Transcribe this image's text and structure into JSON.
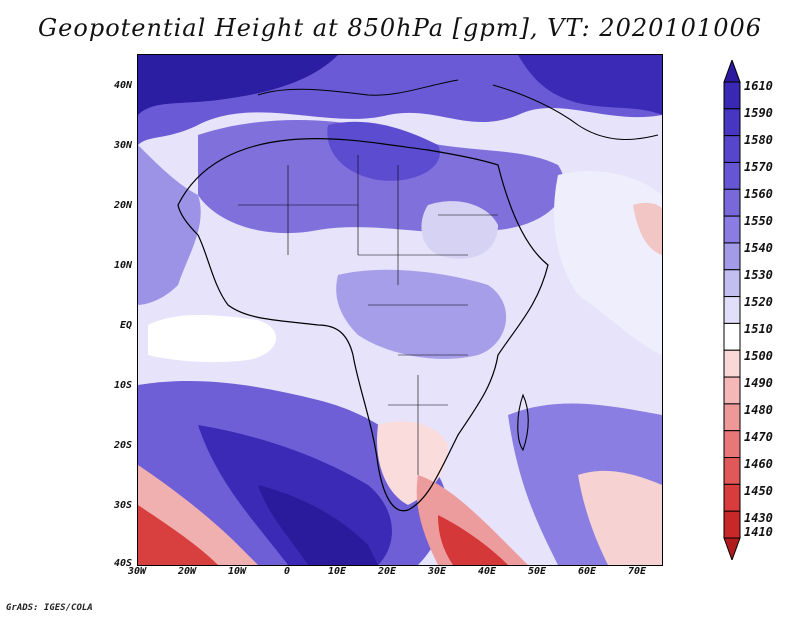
{
  "title": "Geopotential Height at 850hPa [gpm], VT: 2020101006",
  "credit": "GrADS: IGES/COLA",
  "map": {
    "region": "Africa",
    "lon_range": [
      -30,
      75
    ],
    "lat_range": [
      -40,
      45
    ],
    "lat_labels": [
      "40N",
      "30N",
      "20N",
      "10N",
      "EQ",
      "10S",
      "20S",
      "30S",
      "40S"
    ],
    "lon_labels": [
      "30W",
      "20W",
      "10W",
      "0",
      "10E",
      "20E",
      "30E",
      "40E",
      "50E",
      "60E",
      "70E"
    ]
  },
  "colorbar": {
    "labels": [
      "1610",
      "1590",
      "1580",
      "1570",
      "1560",
      "1550",
      "1540",
      "1530",
      "1520",
      "1510",
      "1500",
      "1490",
      "1480",
      "1470",
      "1460",
      "1450",
      "1430",
      "1410"
    ],
    "colors": [
      "#2b1a9e",
      "#3828b4",
      "#4636c2",
      "#5646cc",
      "#6656d4",
      "#7868da",
      "#8a7ce2",
      "#a39ae8",
      "#c2bef0",
      "#e0def8",
      "#ffffff",
      "#fad8d8",
      "#f4b8b8",
      "#ee9898",
      "#e87878",
      "#e05858",
      "#d83c3c",
      "#c82828",
      "#b01c1c"
    ]
  }
}
